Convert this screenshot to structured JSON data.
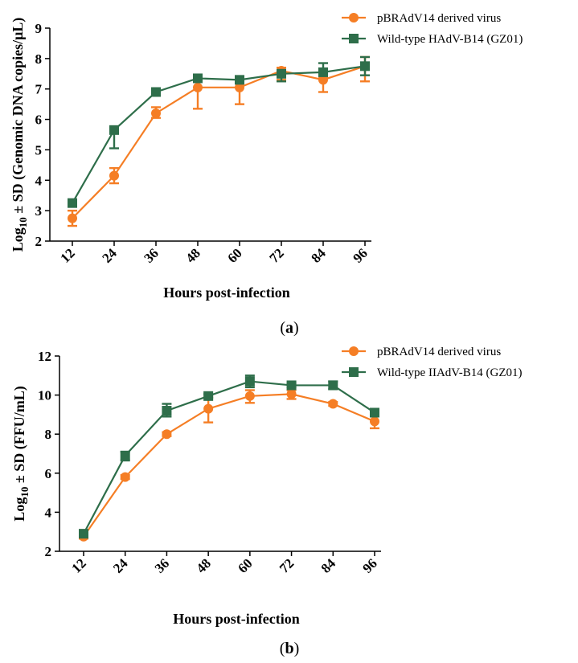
{
  "chart_data": [
    {
      "type": "line",
      "panel": "a",
      "caption_letter": "a",
      "xlabel": "Hours post-infection",
      "ylabel_prefix": "Log",
      "ylabel_sub": "10",
      "ylabel_suffix": " ± SD (Genomic DNA copies/μL)",
      "x": [
        12,
        24,
        36,
        48,
        60,
        72,
        84,
        96
      ],
      "ylim": [
        2,
        9
      ],
      "yticks": [
        2,
        3,
        4,
        5,
        6,
        7,
        8,
        9
      ],
      "series": [
        {
          "name": "pBRAdV14 derived virus",
          "color": "#f57e25",
          "marker": "circle",
          "values": [
            2.75,
            4.15,
            6.2,
            7.05,
            7.05,
            7.6,
            7.3,
            7.75
          ],
          "err_up": [
            0.25,
            0.25,
            0.2,
            0.0,
            0.0,
            0.1,
            0.1,
            0.3
          ],
          "err_down": [
            0.25,
            0.25,
            0.15,
            0.7,
            0.55,
            0.3,
            0.4,
            0.5
          ]
        },
        {
          "name": "Wild-type HAdV-B14 (GZ01)",
          "color": "#2e6e4a",
          "marker": "square",
          "values": [
            3.25,
            5.65,
            6.9,
            7.35,
            7.3,
            7.5,
            7.55,
            7.75
          ],
          "err_up": [
            0.0,
            0.1,
            0.05,
            0.05,
            0.05,
            0.1,
            0.3,
            0.3
          ],
          "err_down": [
            0.0,
            0.6,
            0.05,
            0.05,
            0.05,
            0.25,
            0.1,
            0.3
          ]
        }
      ]
    },
    {
      "type": "line",
      "panel": "b",
      "caption_letter": "b",
      "xlabel": "Hours post-infection",
      "ylabel_prefix": "Log",
      "ylabel_sub": "10",
      "ylabel_suffix": " ± SD (FFU/mL)",
      "x": [
        12,
        24,
        36,
        48,
        60,
        72,
        84,
        96
      ],
      "ylim": [
        2,
        12
      ],
      "yticks": [
        2,
        4,
        6,
        8,
        10,
        12
      ],
      "series": [
        {
          "name": "pBRAdV14 derived virus",
          "color": "#f57e25",
          "marker": "circle",
          "values": [
            2.75,
            5.8,
            8.0,
            9.3,
            9.95,
            10.05,
            9.55,
            8.65
          ],
          "err_up": [
            0.1,
            0.1,
            0.1,
            0.6,
            0.3,
            0.2,
            0.1,
            0.3
          ],
          "err_down": [
            0.1,
            0.1,
            0.1,
            0.7,
            0.35,
            0.25,
            0.1,
            0.35
          ]
        },
        {
          "name": "Wild-type IIAdV-B14 (GZ01)",
          "color": "#2e6e4a",
          "marker": "square",
          "values": [
            2.9,
            6.9,
            9.2,
            9.95,
            10.7,
            10.5,
            10.5,
            9.1
          ],
          "err_up": [
            0.1,
            0.2,
            0.35,
            0.1,
            0.3,
            0.1,
            0.2,
            0.1
          ],
          "err_down": [
            0.1,
            0.25,
            0.3,
            0.1,
            0.3,
            0.1,
            0.2,
            0.1
          ]
        }
      ]
    }
  ]
}
